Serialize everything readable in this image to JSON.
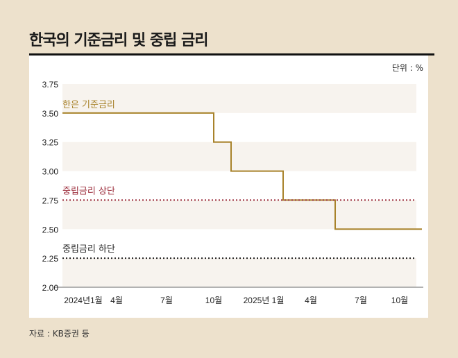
{
  "title": "한국의 기준금리 및 중립 금리",
  "unit_label": "단위 : %",
  "source": "자료 : KB증권 등",
  "chart_data": {
    "type": "line",
    "title": "한국의 기준금리 및 중립 금리",
    "ylim": [
      2.0,
      3.75
    ],
    "y_ticks": [
      "3.75",
      "3.50",
      "3.25",
      "3.00",
      "2.75",
      "2.50",
      "2.25",
      "2.00"
    ],
    "x_ticks": [
      "2024년1월",
      "4월",
      "7월",
      "10월",
      "2025년 1월",
      "4월",
      "7월",
      "10월"
    ],
    "grid": "alternating horizontal bands",
    "series": [
      {
        "name": "한은 기준금리",
        "color": "#a8822a",
        "style": "step",
        "points": [
          [
            "2024-01",
            3.5
          ],
          [
            "2024-10",
            3.25
          ],
          [
            "2024-11",
            3.0
          ],
          [
            "2025-02",
            2.75
          ],
          [
            "2025-05",
            2.5
          ],
          [
            "2025-10",
            2.5
          ]
        ]
      },
      {
        "name": "중립금리 상단",
        "color": "#9b2b3a",
        "style": "dotted",
        "value": 2.75
      },
      {
        "name": "중립금리 하단",
        "color": "#222222",
        "style": "dotted",
        "value": 2.25
      }
    ]
  }
}
